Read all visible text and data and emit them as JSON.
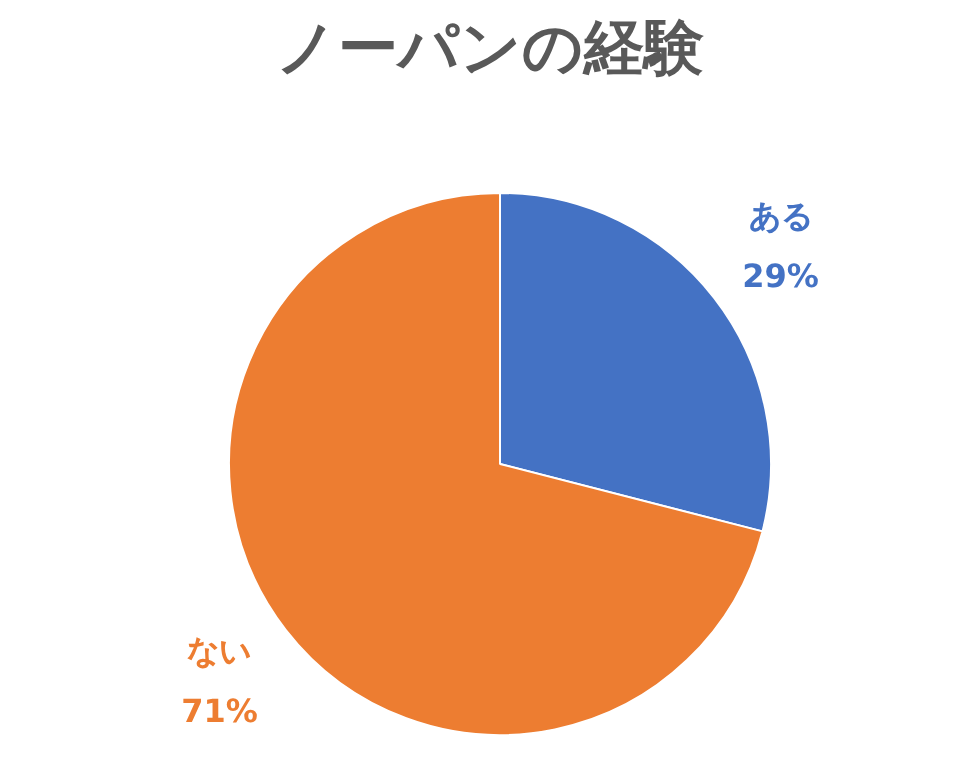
{
  "chart_data": {
    "type": "pie",
    "title": "ノーパンの経験",
    "categories": [
      "ある",
      "ない"
    ],
    "values": [
      29,
      71
    ],
    "colors": [
      "#4472c4",
      "#ed7d31"
    ],
    "value_labels": [
      "29%",
      "71%"
    ],
    "legend": false
  }
}
